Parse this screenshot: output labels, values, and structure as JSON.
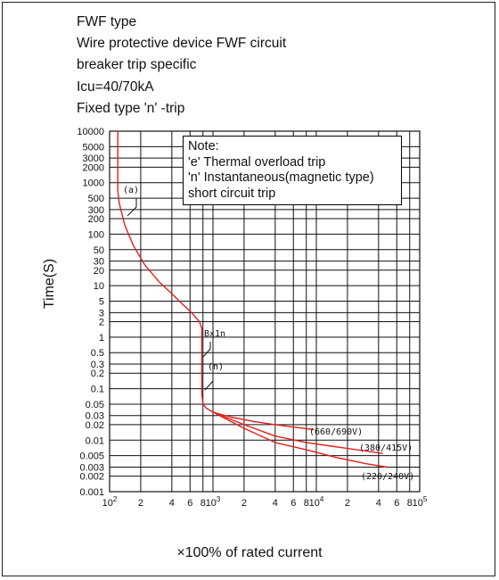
{
  "title_lines": [
    "FWF type",
    "Wire protective device FWF circuit",
    "breaker trip specific",
    "Icu=40/70kA",
    "Fixed type 'n' -trip"
  ],
  "note": {
    "heading": "Note:",
    "lines": [
      "'e' Thermal overload trip",
      "'n' Instantaneous(magnetic type)",
      "short circuit trip"
    ]
  },
  "chart_data": {
    "type": "line",
    "xlabel": "×100% of rated current",
    "ylabel": "Time(S)",
    "xscale": "log",
    "yscale": "log",
    "xlim": [
      100,
      100000
    ],
    "ylim": [
      0.001,
      10000
    ],
    "grid": true,
    "line_color": "#e0201a",
    "y_tick_labels": [
      "10000",
      "5000",
      "3000",
      "2000",
      "1000",
      "500",
      "300",
      "200",
      "100",
      "50",
      "30",
      "20",
      "10",
      "5",
      "3",
      "2",
      "1",
      "0.5",
      "0.3",
      "0.2",
      "0.1",
      "0.05",
      "0.03",
      "0.02",
      "0.01",
      "0.005",
      "0.003",
      "0.002",
      "0.001"
    ],
    "y_ticks": [
      10000,
      5000,
      3000,
      2000,
      1000,
      500,
      300,
      200,
      100,
      50,
      30,
      20,
      10,
      5,
      3,
      2,
      1,
      0.5,
      0.3,
      0.2,
      0.1,
      0.05,
      0.03,
      0.02,
      0.01,
      0.005,
      0.003,
      0.002,
      0.001
    ],
    "x_ticks": [
      {
        "value": 100,
        "label": "10",
        "sup": "2"
      },
      {
        "value": 200,
        "label": "2",
        "sup": ""
      },
      {
        "value": 400,
        "label": "4",
        "sup": ""
      },
      {
        "value": 600,
        "label": "6",
        "sup": ""
      },
      {
        "value": 800,
        "label": "8",
        "sup": ""
      },
      {
        "value": 1000,
        "label": "10",
        "sup": "3"
      },
      {
        "value": 2000,
        "label": "2",
        "sup": ""
      },
      {
        "value": 4000,
        "label": "4",
        "sup": ""
      },
      {
        "value": 6000,
        "label": "6",
        "sup": ""
      },
      {
        "value": 8000,
        "label": "8",
        "sup": ""
      },
      {
        "value": 10000,
        "label": "10",
        "sup": "4"
      },
      {
        "value": 20000,
        "label": "2",
        "sup": ""
      },
      {
        "value": 40000,
        "label": "4",
        "sup": ""
      },
      {
        "value": 60000,
        "label": "6",
        "sup": ""
      },
      {
        "value": 80000,
        "label": "8",
        "sup": ""
      },
      {
        "value": 100000,
        "label": "10",
        "sup": "5"
      }
    ],
    "series": [
      {
        "name": "(a)",
        "points": [
          [
            120,
            10000
          ],
          [
            120,
            700
          ],
          [
            124,
            400
          ],
          [
            140,
            150
          ],
          [
            170,
            60
          ],
          [
            220,
            25
          ],
          [
            300,
            12
          ],
          [
            400,
            7
          ],
          [
            500,
            4.5
          ],
          [
            620,
            3
          ],
          [
            740,
            2
          ],
          [
            780,
            1.5
          ],
          [
            780,
            0.08
          ],
          [
            800,
            0.05
          ],
          [
            860,
            0.042
          ],
          [
            1000,
            0.035
          ]
        ]
      },
      {
        "name": "(660/690V)",
        "points": [
          [
            1000,
            0.035
          ],
          [
            1500,
            0.028
          ],
          [
            2500,
            0.023
          ],
          [
            4000,
            0.02
          ],
          [
            6000,
            0.018
          ],
          [
            9500,
            0.016
          ]
        ]
      },
      {
        "name": "(380/415V)",
        "points": [
          [
            1000,
            0.035
          ],
          [
            2000,
            0.02
          ],
          [
            4000,
            0.012
          ],
          [
            8000,
            0.009
          ],
          [
            15000,
            0.0075
          ],
          [
            30000,
            0.0062
          ],
          [
            44000,
            0.0055
          ]
        ]
      },
      {
        "name": "(220/240V)",
        "points": [
          [
            1000,
            0.035
          ],
          [
            2000,
            0.017
          ],
          [
            4000,
            0.009
          ],
          [
            8000,
            0.0065
          ],
          [
            15000,
            0.0047
          ],
          [
            30000,
            0.0035
          ],
          [
            48000,
            0.003
          ]
        ]
      }
    ],
    "annotations": [
      "(a)",
      "Bx1n",
      "(n)",
      "(660/690V)",
      "(380/415V)",
      "(220/240V)"
    ]
  }
}
